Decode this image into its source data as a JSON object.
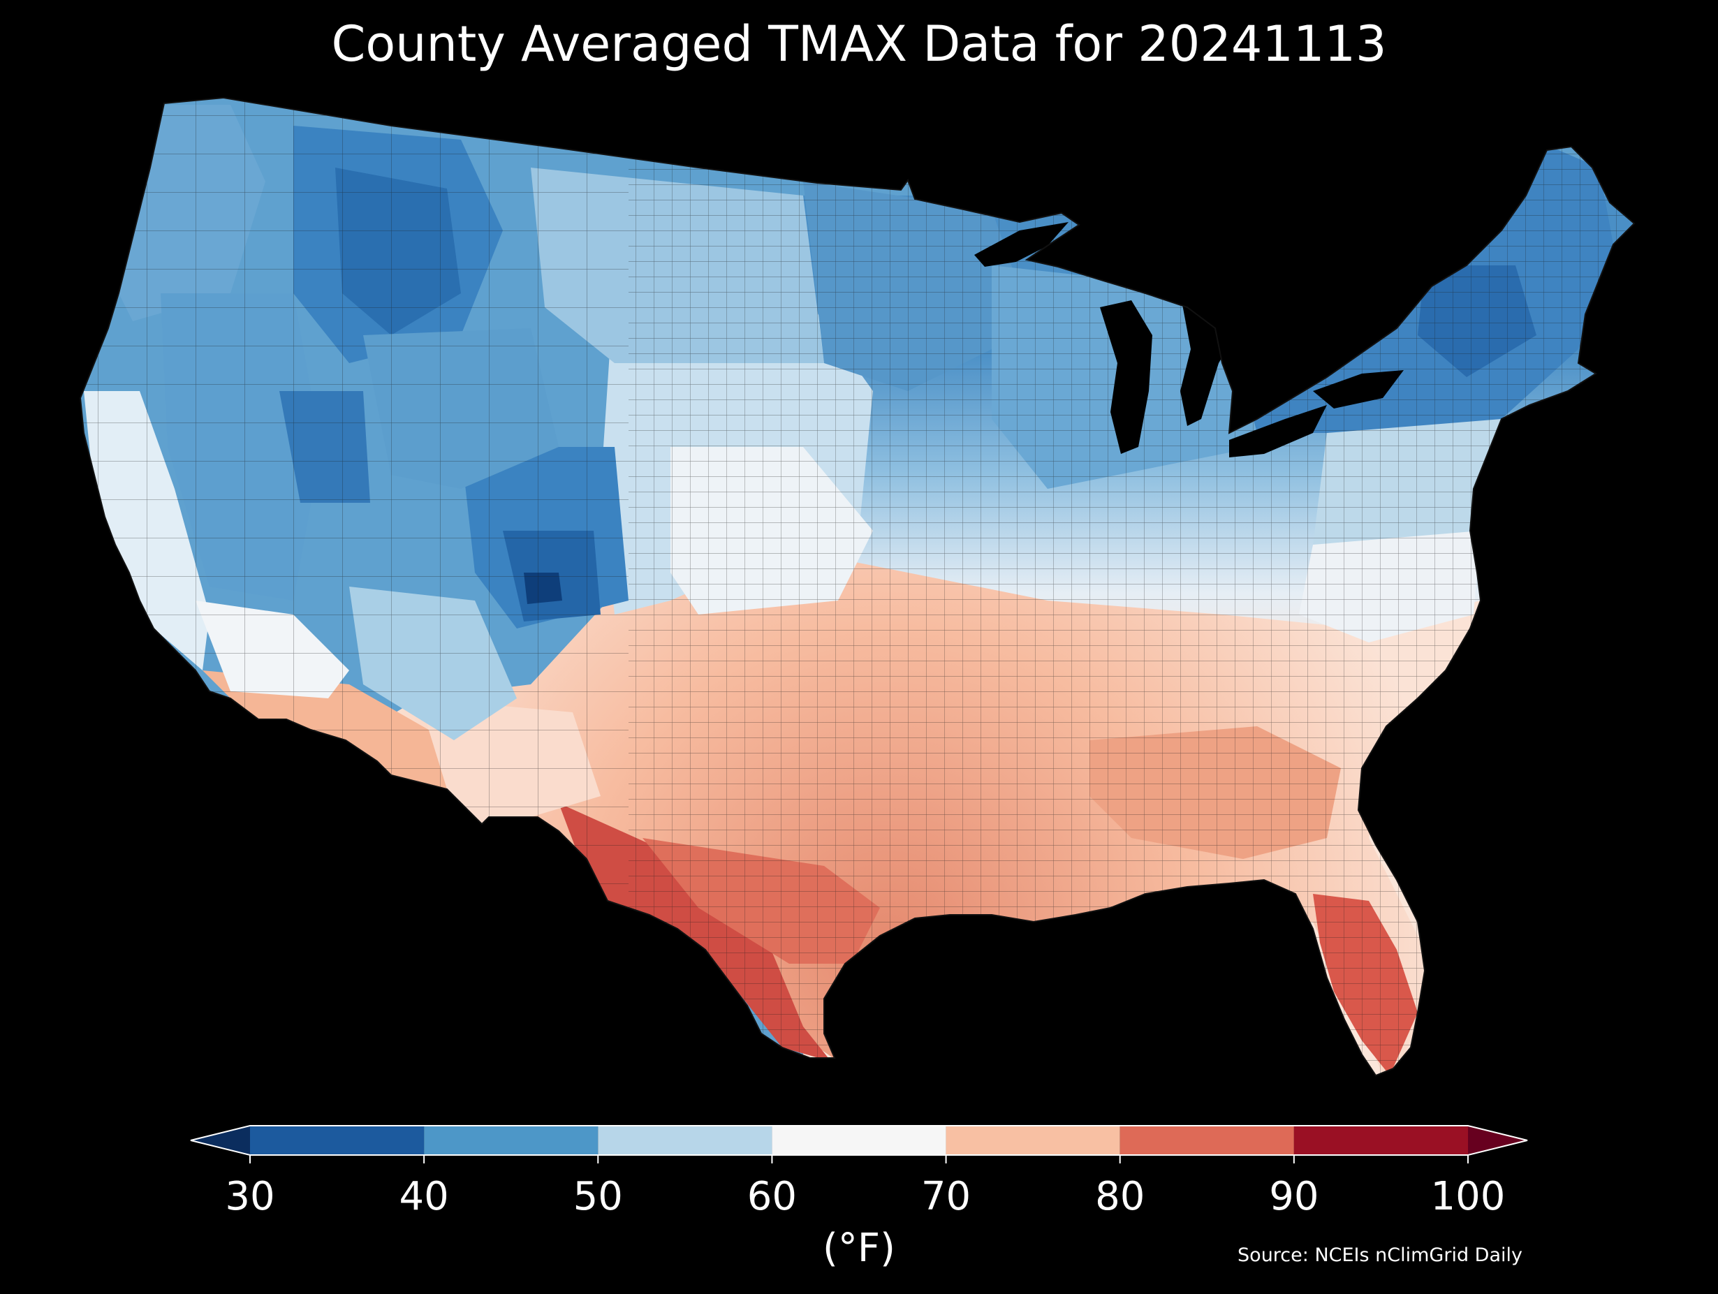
{
  "title": "County Averaged TMAX Data for 20241113",
  "colorbar": {
    "unit_label": "(°F)",
    "ticks": [
      "30",
      "40",
      "50",
      "60",
      "70",
      "80",
      "90",
      "100"
    ],
    "tick_values": [
      30,
      40,
      50,
      60,
      70,
      80,
      90,
      100
    ],
    "bins": [
      {
        "from": 30,
        "to": 40,
        "color": "#1c5a9e"
      },
      {
        "from": 40,
        "to": 50,
        "color": "#4d97c8"
      },
      {
        "from": 50,
        "to": 60,
        "color": "#b7d6e9"
      },
      {
        "from": 60,
        "to": 70,
        "color": "#f6f6f6"
      },
      {
        "from": 70,
        "to": 80,
        "color": "#f8c0a3"
      },
      {
        "from": 80,
        "to": 90,
        "color": "#de6a57"
      },
      {
        "from": 90,
        "to": 100,
        "color": "#9a1024"
      }
    ],
    "under_color": "#0b2d5e",
    "over_color": "#67001f",
    "extend": "both"
  },
  "map": {
    "region": "contiguous United States",
    "unit": "county",
    "variable": "TMAX",
    "regional_tmax_f": [
      {
        "region": "Pacific Northwest",
        "value": 47
      },
      {
        "region": "Northern Rockies",
        "value": 38
      },
      {
        "region": "Colorado Rockies",
        "value": 36
      },
      {
        "region": "Great Basin",
        "value": 44
      },
      {
        "region": "California Coast",
        "value": 60
      },
      {
        "region": "Desert Southwest",
        "value": 74
      },
      {
        "region": "Northern Plains",
        "value": 52
      },
      {
        "region": "Upper Midwest",
        "value": 47
      },
      {
        "region": "Great Lakes",
        "value": 46
      },
      {
        "region": "Northeast",
        "value": 41
      },
      {
        "region": "Mid-Atlantic",
        "value": 60
      },
      {
        "region": "Central Plains",
        "value": 66
      },
      {
        "region": "Southern Plains",
        "value": 76
      },
      {
        "region": "South Texas",
        "value": 86
      },
      {
        "region": "Southeast",
        "value": 78
      },
      {
        "region": "Florida",
        "value": 86
      }
    ],
    "colors": {
      "background": "#000000",
      "county_border": "#1a1a1a",
      "great_lakes": "#000000"
    }
  },
  "source": "Source: NCEIs nClimGrid Daily"
}
